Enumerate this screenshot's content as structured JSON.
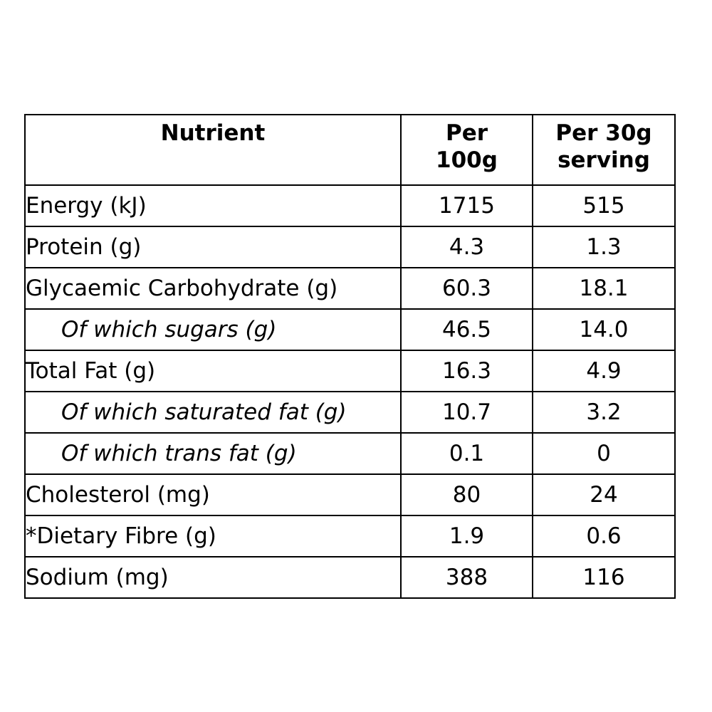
{
  "header": {
    "nutrient": "Nutrient",
    "per100g_line1": "Per",
    "per100g_line2": "100g",
    "perServing_line1": "Per 30g",
    "perServing_line2": "serving"
  },
  "rows": [
    {
      "label": "Energy (kJ)",
      "per100g": "1715",
      "perServing": "515",
      "sub": false
    },
    {
      "label": "Protein (g)",
      "per100g": "4.3",
      "perServing": "1.3",
      "sub": false
    },
    {
      "label": "Glycaemic Carbohydrate (g)",
      "per100g": "60.3",
      "perServing": "18.1",
      "sub": false
    },
    {
      "label": "Of which sugars (g)",
      "per100g": "46.5",
      "perServing": "14.0",
      "sub": true
    },
    {
      "label": "Total Fat (g)",
      "per100g": "16.3",
      "perServing": "4.9",
      "sub": false
    },
    {
      "label": "Of which saturated fat (g)",
      "per100g": "10.7",
      "perServing": "3.2",
      "sub": true
    },
    {
      "label": "Of which trans fat (g)",
      "per100g": "0.1",
      "perServing": "0",
      "sub": true
    },
    {
      "label": "Cholesterol (mg)",
      "per100g": "80",
      "perServing": "24",
      "sub": false
    },
    {
      "label": "*Dietary Fibre (g)",
      "per100g": "1.9",
      "perServing": "0.6",
      "sub": false
    },
    {
      "label": "Sodium (mg)",
      "per100g": "388",
      "perServing": "116",
      "sub": false
    }
  ]
}
